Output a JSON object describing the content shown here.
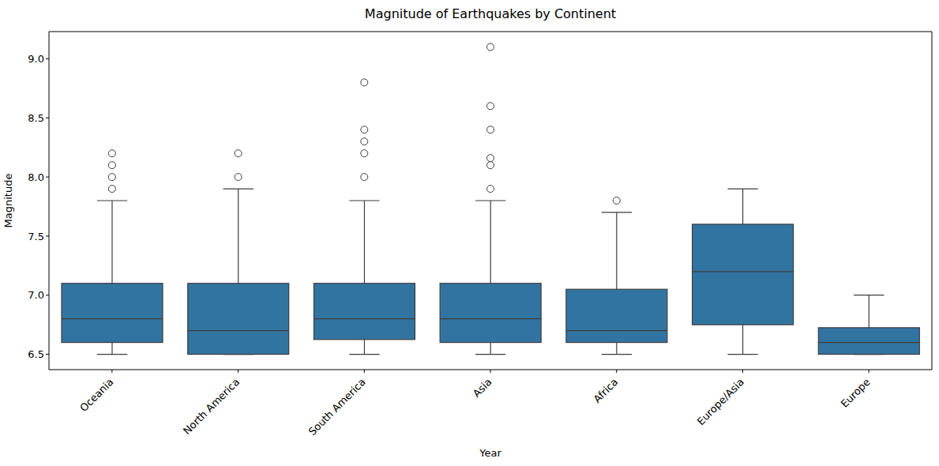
{
  "chart_data": {
    "type": "box",
    "title": "Magnitude of Earthquakes by Continent",
    "x_label": "Year",
    "y_label": "Magnitude",
    "categories": [
      "Oceania",
      "North America",
      "South America",
      "Asia",
      "Africa",
      "Europe/Asia",
      "Europe"
    ],
    "whisker_low": [
      6.5,
      6.5,
      6.5,
      6.5,
      6.5,
      6.5,
      6.5
    ],
    "q1": [
      6.6,
      6.5,
      6.625,
      6.6,
      6.6,
      6.75,
      6.5
    ],
    "median": [
      6.8,
      6.7,
      6.8,
      6.8,
      6.7,
      7.2,
      6.6
    ],
    "q3": [
      7.1,
      7.1,
      7.1,
      7.1,
      7.05,
      7.6,
      6.725
    ],
    "whisker_high": [
      7.8,
      7.9,
      7.8,
      7.8,
      7.7,
      7.9,
      7.0
    ],
    "outliers": [
      [
        7.9,
        8.0,
        8.1,
        8.2
      ],
      [
        8.0,
        8.2
      ],
      [
        8.0,
        8.2,
        8.3,
        8.4,
        8.8
      ],
      [
        7.9,
        8.1,
        8.16,
        8.4,
        8.6,
        9.1
      ],
      [
        7.8
      ],
      [],
      []
    ],
    "color": "#3274a1",
    "ylim": [
      6.37,
      9.23
    ],
    "yticks": [
      6.5,
      {
        "value": 7,
        "label": "7.0"
      },
      7.5,
      {
        "value": 8,
        "label": "8.0"
      },
      8.5,
      {
        "value": 9,
        "label": "9.0"
      }
    ],
    "grid": false
  }
}
